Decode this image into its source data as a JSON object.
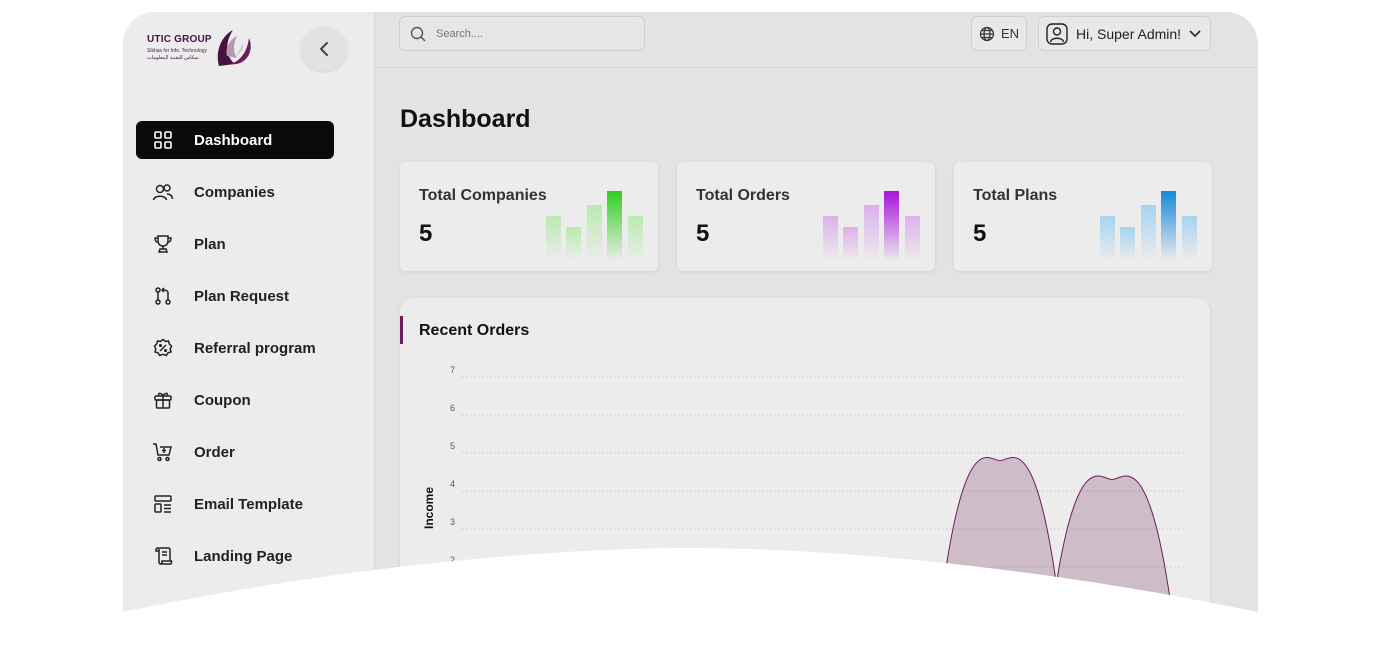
{
  "brand": {
    "name": "UTIC GROUP",
    "tagline_en": "Sikhas for Info. Technology",
    "tagline_ar": "سكاس للتقنية المعلومات"
  },
  "sidebar": {
    "items": [
      {
        "label": "Dashboard",
        "icon": "grid-icon",
        "active": true
      },
      {
        "label": "Companies",
        "icon": "users-icon",
        "active": false
      },
      {
        "label": "Plan",
        "icon": "trophy-icon",
        "active": false
      },
      {
        "label": "Plan Request",
        "icon": "git-pull-request-icon",
        "active": false
      },
      {
        "label": "Referral program",
        "icon": "discount-badge-icon",
        "active": false
      },
      {
        "label": "Coupon",
        "icon": "gift-icon",
        "active": false
      },
      {
        "label": "Order",
        "icon": "cart-icon",
        "active": false
      },
      {
        "label": "Email Template",
        "icon": "template-icon",
        "active": false
      },
      {
        "label": "Landing Page",
        "icon": "scroll-icon",
        "active": false
      }
    ]
  },
  "header": {
    "search_placeholder": "Search....",
    "language": "EN",
    "user_greeting": "Hi, Super Admin!"
  },
  "main": {
    "title": "Dashboard",
    "cards": [
      {
        "title": "Total Companies",
        "value": "5",
        "accent": "#34d52a"
      },
      {
        "title": "Total Orders",
        "value": "5",
        "accent": "#b118e0"
      },
      {
        "title": "Total Plans",
        "value": "5",
        "accent": "#1c8fe0"
      }
    ],
    "recent_orders": {
      "title": "Recent Orders"
    }
  },
  "chart_data": {
    "type": "area",
    "title": "Recent Orders",
    "ylabel": "Income",
    "xlabel": "",
    "yticks": [
      "7",
      "6",
      "5",
      "4",
      "3",
      "2"
    ],
    "ylim": [
      0,
      7
    ],
    "grid": true,
    "series": [
      {
        "color": "#6b1f5a",
        "peaks": [
          4.8,
          4.3
        ]
      }
    ]
  },
  "colors": {
    "active_nav": "#0a0a0a",
    "brand_purple": "#6b1f5a"
  }
}
